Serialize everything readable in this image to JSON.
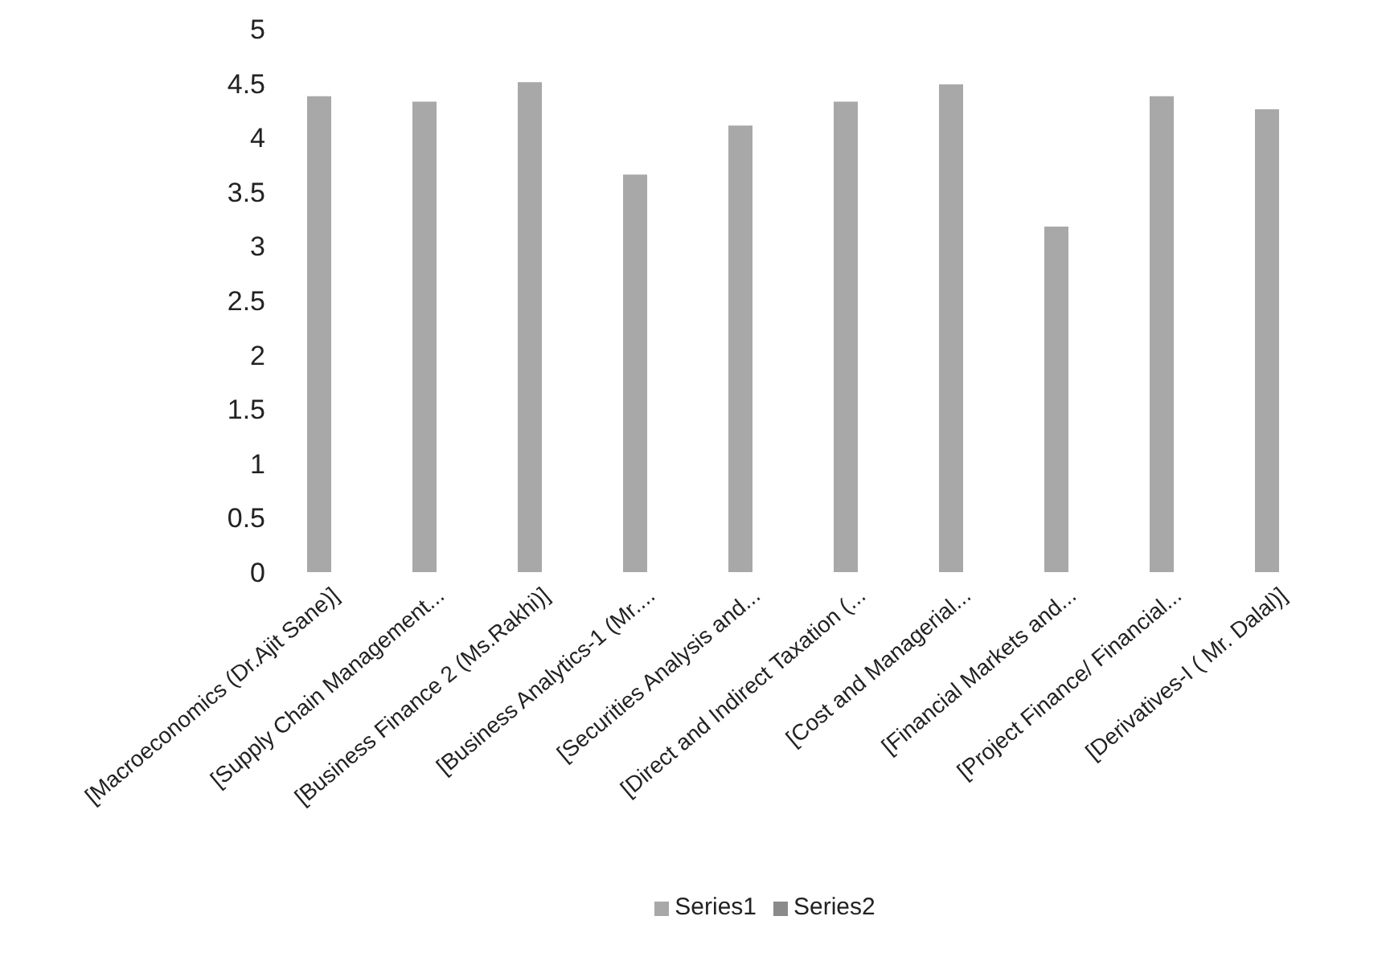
{
  "chart_data": {
    "type": "bar",
    "categories": [
      "[Macroeconomics (Dr.Ajit Sane)]",
      "[Supply Chain Management...",
      "[Business Finance 2 (Ms.Rakhi)]",
      "[Business Analytics-1 (Mr....",
      "[Securities Analysis and...",
      "[Direct and Indirect Taxation  (...",
      "[Cost and Managerial...",
      "[Financial Markets and...",
      "[Project Finance/ Financial...",
      "[Derivatives-I  ( Mr. Dalal)]"
    ],
    "series": [
      {
        "name": "Series1",
        "color": "#a8a8a8",
        "values": [
          4.38,
          4.33,
          4.51,
          3.66,
          4.11,
          4.33,
          4.49,
          3.18,
          4.38,
          4.26
        ]
      },
      {
        "name": "Series2",
        "color": "#8a8a8a",
        "values": [
          null,
          null,
          null,
          null,
          null,
          null,
          null,
          null,
          null,
          null
        ]
      }
    ],
    "ylim": [
      0,
      5
    ],
    "yticks": [
      0,
      0.5,
      1,
      1.5,
      2,
      2.5,
      3,
      3.5,
      4,
      4.5,
      5
    ],
    "grid": false,
    "legend": "bottom"
  }
}
